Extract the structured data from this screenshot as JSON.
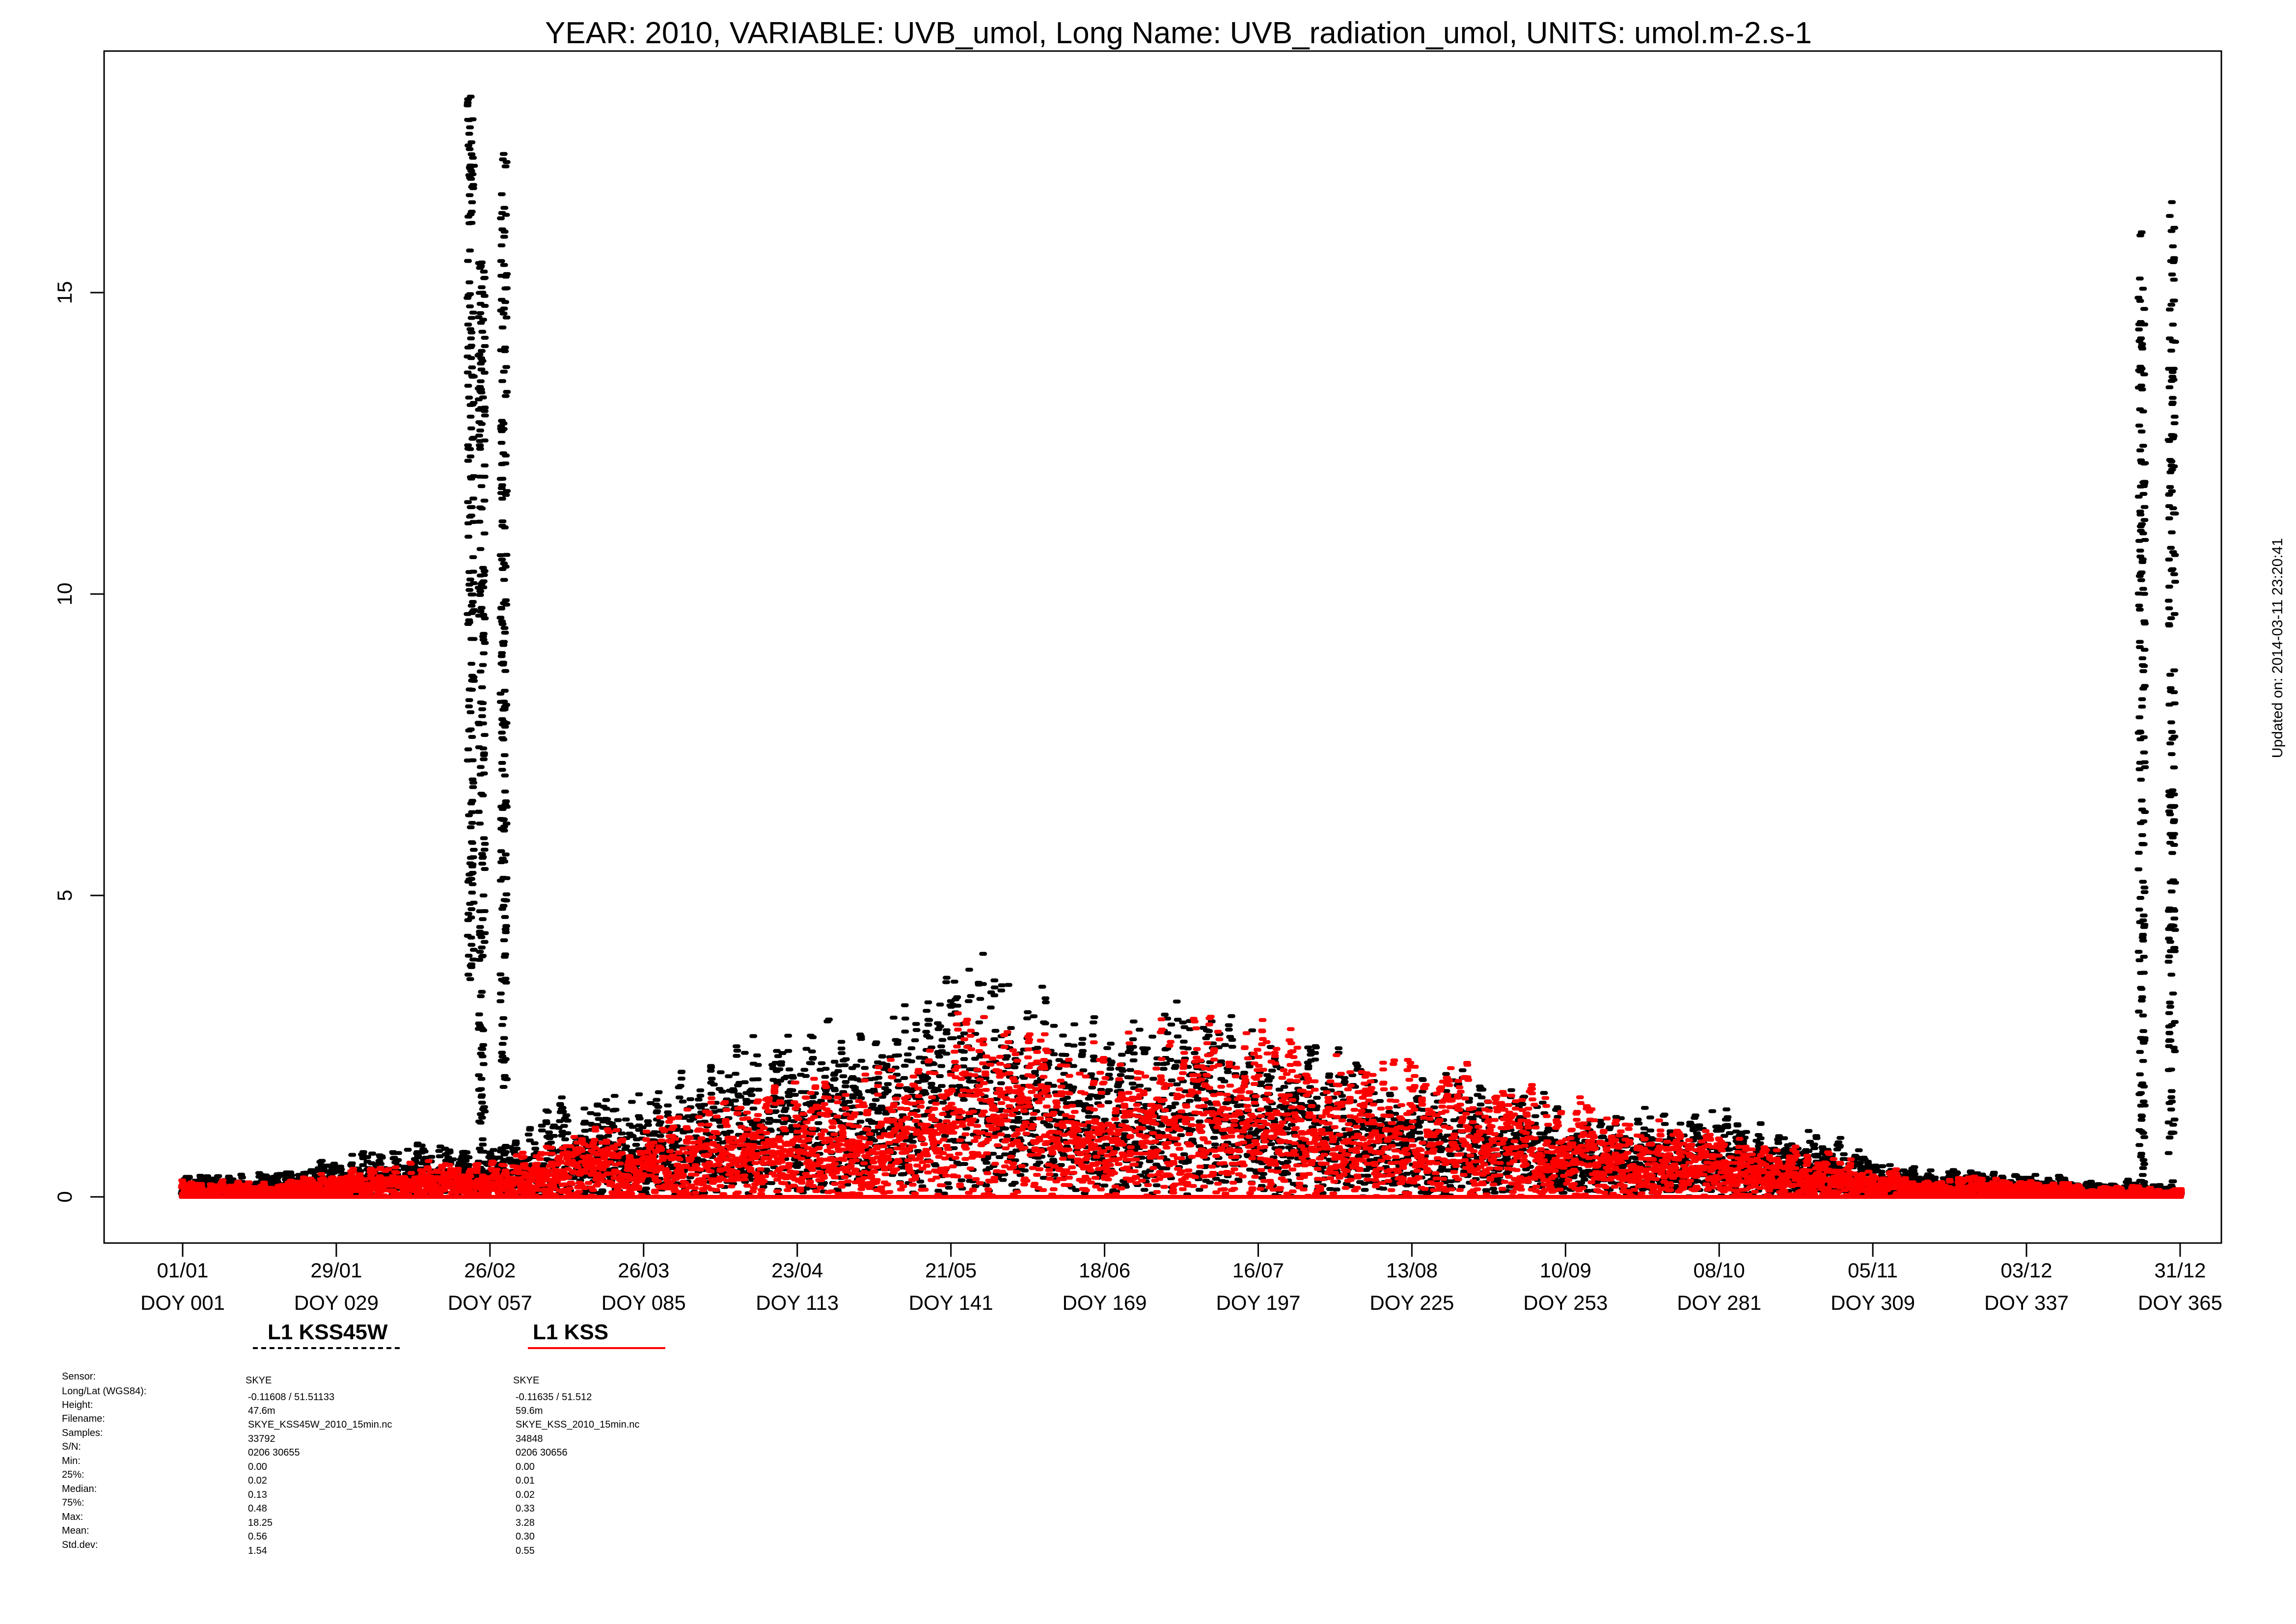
{
  "chart_data": {
    "type": "scatter",
    "title": "YEAR: 2010, VARIABLE: UVB_umol, Long Name: UVB_radiation_umol, UNITS: umol.m-2.s-1",
    "xlabel": "",
    "ylabel": "",
    "updated": "Updated on: 2014-03-11 23:20:41",
    "xlim": [
      1,
      366
    ],
    "ylim": [
      -0.7,
      19.0
    ],
    "y_ticks": [
      0,
      5,
      10,
      15
    ],
    "x_ticks": [
      {
        "doy": 1,
        "date": "01/01",
        "label": "DOY 001"
      },
      {
        "doy": 29,
        "date": "29/01",
        "label": "DOY 029"
      },
      {
        "doy": 57,
        "date": "26/02",
        "label": "DOY 057"
      },
      {
        "doy": 85,
        "date": "26/03",
        "label": "DOY 085"
      },
      {
        "doy": 113,
        "date": "23/04",
        "label": "DOY 113"
      },
      {
        "doy": 141,
        "date": "21/05",
        "label": "DOY 141"
      },
      {
        "doy": 169,
        "date": "18/06",
        "label": "DOY 169"
      },
      {
        "doy": 197,
        "date": "16/07",
        "label": "DOY 197"
      },
      {
        "doy": 225,
        "date": "13/08",
        "label": "DOY 225"
      },
      {
        "doy": 253,
        "date": "10/09",
        "label": "DOY 253"
      },
      {
        "doy": 281,
        "date": "08/10",
        "label": "DOY 281"
      },
      {
        "doy": 309,
        "date": "05/11",
        "label": "DOY 309"
      },
      {
        "doy": 337,
        "date": "03/12",
        "label": "DOY 337"
      },
      {
        "doy": 365,
        "date": "31/12",
        "label": "DOY 365"
      }
    ],
    "legend_placement": "bottom-left",
    "series": [
      {
        "name": "L1 KSS45W",
        "color": "#000000",
        "line_style": "dashed",
        "envelope": [
          [
            1,
            0.45
          ],
          [
            8,
            0.42
          ],
          [
            15,
            0.4
          ],
          [
            22,
            0.55
          ],
          [
            29,
            0.7
          ],
          [
            36,
            0.8
          ],
          [
            43,
            0.9
          ],
          [
            50,
            1.0
          ],
          [
            54,
            0.95
          ],
          [
            57,
            0.9
          ],
          [
            64,
            1.3
          ],
          [
            71,
            1.8
          ],
          [
            78,
            1.75
          ],
          [
            85,
            1.9
          ],
          [
            92,
            2.1
          ],
          [
            99,
            2.6
          ],
          [
            106,
            2.9
          ],
          [
            113,
            3.0
          ],
          [
            120,
            3.2
          ],
          [
            127,
            3.3
          ],
          [
            134,
            3.5
          ],
          [
            141,
            4.1
          ],
          [
            148,
            4.1
          ],
          [
            155,
            3.9
          ],
          [
            162,
            3.2
          ],
          [
            169,
            3.0
          ],
          [
            176,
            3.7
          ],
          [
            183,
            3.9
          ],
          [
            190,
            3.3
          ],
          [
            197,
            3.0
          ],
          [
            204,
            2.8
          ],
          [
            211,
            2.6
          ],
          [
            218,
            2.5
          ],
          [
            225,
            2.4
          ],
          [
            232,
            2.3
          ],
          [
            239,
            2.1
          ],
          [
            246,
            1.9
          ],
          [
            253,
            1.7
          ],
          [
            260,
            1.6
          ],
          [
            267,
            1.7
          ],
          [
            274,
            1.6
          ],
          [
            281,
            1.6
          ],
          [
            288,
            1.3
          ],
          [
            295,
            1.2
          ],
          [
            302,
            1.1
          ],
          [
            309,
            0.7
          ],
          [
            316,
            0.55
          ],
          [
            323,
            0.5
          ],
          [
            330,
            0.45
          ],
          [
            337,
            0.4
          ],
          [
            344,
            0.35
          ],
          [
            351,
            0.3
          ],
          [
            358,
            0.3
          ],
          [
            365,
            0.2
          ]
        ],
        "spikes": [
          {
            "doy": 53.5,
            "y_min": 3.5,
            "y_max": 18.25
          },
          {
            "doy": 55.5,
            "y_min": 0.5,
            "y_max": 15.5
          },
          {
            "doy": 59.5,
            "y_min": 1.8,
            "y_max": 17.3
          },
          {
            "doy": 358,
            "y_min": 0.0,
            "y_max": 16.0
          },
          {
            "doy": 363.5,
            "y_min": 0.0,
            "y_max": 16.5
          }
        ],
        "stats": {
          "sensor": "SKYE",
          "long_lat": "-0.11608 / 51.51133",
          "height": "47.6m",
          "filename": "SKYE_KSS45W_2010_15min.nc",
          "samples": "33792",
          "sn": "0206 30655",
          "min": "0.00",
          "q25": "0.02",
          "median": "0.13",
          "q75": "0.48",
          "max": "18.25",
          "mean": "0.56",
          "stddev": "1.54"
        }
      },
      {
        "name": "L1 KSS",
        "color": "#ff0000",
        "line_style": "solid",
        "envelope": [
          [
            1,
            0.3
          ],
          [
            8,
            0.28
          ],
          [
            15,
            0.3
          ],
          [
            22,
            0.35
          ],
          [
            29,
            0.45
          ],
          [
            36,
            0.55
          ],
          [
            43,
            0.6
          ],
          [
            50,
            0.6
          ],
          [
            57,
            0.6
          ],
          [
            64,
            0.8
          ],
          [
            71,
            1.2
          ],
          [
            78,
            1.3
          ],
          [
            85,
            1.4
          ],
          [
            92,
            1.5
          ],
          [
            99,
            1.8
          ],
          [
            106,
            2.0
          ],
          [
            113,
            2.2
          ],
          [
            120,
            2.1
          ],
          [
            127,
            2.2
          ],
          [
            134,
            2.5
          ],
          [
            141,
            3.28
          ],
          [
            148,
            3.2
          ],
          [
            155,
            2.9
          ],
          [
            162,
            2.8
          ],
          [
            169,
            2.9
          ],
          [
            176,
            3.1
          ],
          [
            183,
            3.2
          ],
          [
            190,
            3.2
          ],
          [
            197,
            3.1
          ],
          [
            204,
            2.9
          ],
          [
            211,
            2.7
          ],
          [
            218,
            2.6
          ],
          [
            225,
            2.5
          ],
          [
            232,
            2.4
          ],
          [
            239,
            2.2
          ],
          [
            246,
            2.0
          ],
          [
            253,
            1.8
          ],
          [
            260,
            1.6
          ],
          [
            267,
            1.4
          ],
          [
            274,
            1.3
          ],
          [
            281,
            1.2
          ],
          [
            288,
            1.0
          ],
          [
            295,
            0.9
          ],
          [
            302,
            0.8
          ],
          [
            309,
            0.5
          ],
          [
            316,
            0.45
          ],
          [
            323,
            0.4
          ],
          [
            330,
            0.35
          ],
          [
            337,
            0.3
          ],
          [
            344,
            0.25
          ],
          [
            351,
            0.2
          ],
          [
            358,
            0.2
          ],
          [
            365,
            0.15
          ]
        ],
        "spikes": [],
        "stats": {
          "sensor": "SKYE",
          "long_lat": "-0.11635 / 51.512",
          "height": "59.6m",
          "filename": "SKYE_KSS_2010_15min.nc",
          "samples": "34848",
          "sn": "0206 30656",
          "min": "0.00",
          "q25": "0.01",
          "median": "0.02",
          "q75": "0.33",
          "max": "3.28",
          "mean": "0.30",
          "stddev": "0.55"
        }
      }
    ]
  },
  "meta_labels": {
    "sensor": "Sensor:",
    "long_lat": "Long/Lat (WGS84):",
    "height": "Height:",
    "filename": "Filename:",
    "samples": "Samples:",
    "sn": "S/N:",
    "min": "Min:",
    "q25": "25%:",
    "median": "Median:",
    "q75": "75%:",
    "max": "Max:",
    "mean": "Mean:",
    "stddev": "Std.dev:"
  }
}
